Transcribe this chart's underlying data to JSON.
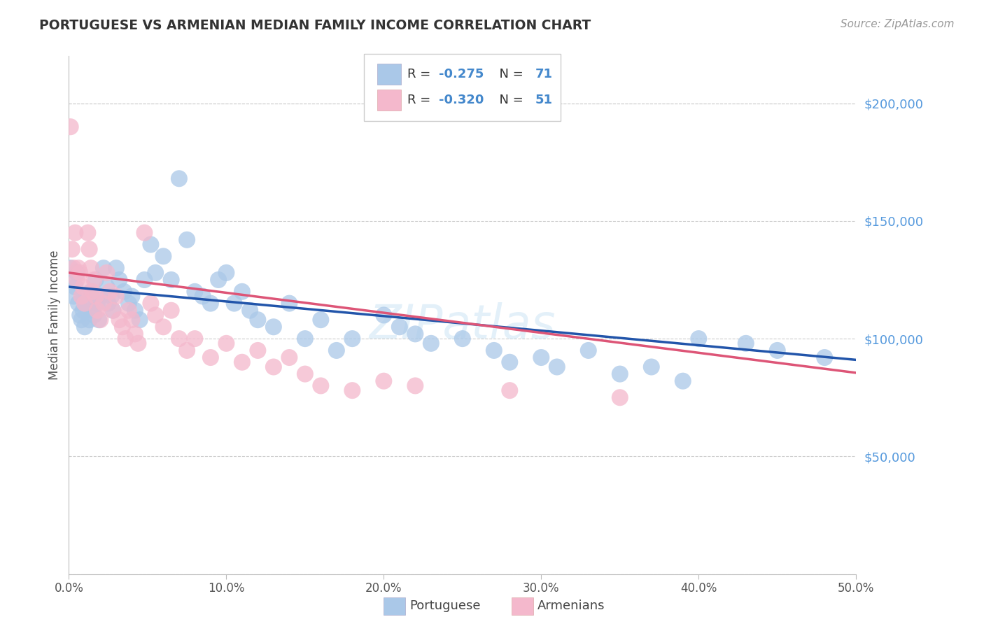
{
  "title": "PORTUGUESE VS ARMENIAN MEDIAN FAMILY INCOME CORRELATION CHART",
  "source": "Source: ZipAtlas.com",
  "ylabel": "Median Family Income",
  "y_tick_labels": [
    "$50,000",
    "$100,000",
    "$150,000",
    "$200,000"
  ],
  "y_tick_values": [
    50000,
    100000,
    150000,
    200000
  ],
  "blue_color": "#aac8e8",
  "pink_color": "#f4b8cc",
  "blue_line_color": "#2255aa",
  "pink_line_color": "#dd5577",
  "x_min": 0.0,
  "x_max": 0.5,
  "y_min": 0,
  "y_max": 220000,
  "blue_intercept": 122000,
  "blue_slope": -62000,
  "pink_intercept": 128000,
  "pink_slope": -85000,
  "blue_points": [
    [
      0.001,
      130000
    ],
    [
      0.002,
      125000
    ],
    [
      0.003,
      118000
    ],
    [
      0.004,
      122000
    ],
    [
      0.005,
      128000
    ],
    [
      0.006,
      115000
    ],
    [
      0.007,
      110000
    ],
    [
      0.008,
      108000
    ],
    [
      0.009,
      112000
    ],
    [
      0.01,
      105000
    ],
    [
      0.011,
      118000
    ],
    [
      0.012,
      115000
    ],
    [
      0.013,
      108000
    ],
    [
      0.014,
      120000
    ],
    [
      0.015,
      112000
    ],
    [
      0.016,
      110000
    ],
    [
      0.017,
      125000
    ],
    [
      0.018,
      115000
    ],
    [
      0.019,
      108000
    ],
    [
      0.02,
      118000
    ],
    [
      0.022,
      130000
    ],
    [
      0.024,
      122000
    ],
    [
      0.025,
      115000
    ],
    [
      0.027,
      118000
    ],
    [
      0.028,
      112000
    ],
    [
      0.03,
      130000
    ],
    [
      0.032,
      125000
    ],
    [
      0.035,
      120000
    ],
    [
      0.038,
      115000
    ],
    [
      0.04,
      118000
    ],
    [
      0.042,
      112000
    ],
    [
      0.045,
      108000
    ],
    [
      0.048,
      125000
    ],
    [
      0.052,
      140000
    ],
    [
      0.055,
      128000
    ],
    [
      0.06,
      135000
    ],
    [
      0.065,
      125000
    ],
    [
      0.07,
      168000
    ],
    [
      0.075,
      142000
    ],
    [
      0.08,
      120000
    ],
    [
      0.085,
      118000
    ],
    [
      0.09,
      115000
    ],
    [
      0.095,
      125000
    ],
    [
      0.1,
      128000
    ],
    [
      0.105,
      115000
    ],
    [
      0.11,
      120000
    ],
    [
      0.115,
      112000
    ],
    [
      0.12,
      108000
    ],
    [
      0.13,
      105000
    ],
    [
      0.14,
      115000
    ],
    [
      0.15,
      100000
    ],
    [
      0.16,
      108000
    ],
    [
      0.17,
      95000
    ],
    [
      0.18,
      100000
    ],
    [
      0.2,
      110000
    ],
    [
      0.21,
      105000
    ],
    [
      0.22,
      102000
    ],
    [
      0.23,
      98000
    ],
    [
      0.25,
      100000
    ],
    [
      0.27,
      95000
    ],
    [
      0.28,
      90000
    ],
    [
      0.3,
      92000
    ],
    [
      0.31,
      88000
    ],
    [
      0.33,
      95000
    ],
    [
      0.35,
      85000
    ],
    [
      0.37,
      88000
    ],
    [
      0.39,
      82000
    ],
    [
      0.4,
      100000
    ],
    [
      0.43,
      98000
    ],
    [
      0.45,
      95000
    ],
    [
      0.48,
      92000
    ]
  ],
  "pink_points": [
    [
      0.001,
      190000
    ],
    [
      0.002,
      138000
    ],
    [
      0.003,
      130000
    ],
    [
      0.004,
      145000
    ],
    [
      0.005,
      125000
    ],
    [
      0.006,
      130000
    ],
    [
      0.007,
      128000
    ],
    [
      0.008,
      118000
    ],
    [
      0.009,
      122000
    ],
    [
      0.01,
      115000
    ],
    [
      0.012,
      145000
    ],
    [
      0.013,
      138000
    ],
    [
      0.014,
      130000
    ],
    [
      0.015,
      120000
    ],
    [
      0.016,
      125000
    ],
    [
      0.017,
      118000
    ],
    [
      0.018,
      112000
    ],
    [
      0.02,
      108000
    ],
    [
      0.022,
      115000
    ],
    [
      0.024,
      128000
    ],
    [
      0.026,
      120000
    ],
    [
      0.028,
      112000
    ],
    [
      0.03,
      118000
    ],
    [
      0.032,
      108000
    ],
    [
      0.034,
      105000
    ],
    [
      0.036,
      100000
    ],
    [
      0.038,
      112000
    ],
    [
      0.04,
      108000
    ],
    [
      0.042,
      102000
    ],
    [
      0.044,
      98000
    ],
    [
      0.048,
      145000
    ],
    [
      0.052,
      115000
    ],
    [
      0.055,
      110000
    ],
    [
      0.06,
      105000
    ],
    [
      0.065,
      112000
    ],
    [
      0.07,
      100000
    ],
    [
      0.075,
      95000
    ],
    [
      0.08,
      100000
    ],
    [
      0.09,
      92000
    ],
    [
      0.1,
      98000
    ],
    [
      0.11,
      90000
    ],
    [
      0.12,
      95000
    ],
    [
      0.13,
      88000
    ],
    [
      0.14,
      92000
    ],
    [
      0.15,
      85000
    ],
    [
      0.16,
      80000
    ],
    [
      0.18,
      78000
    ],
    [
      0.2,
      82000
    ],
    [
      0.22,
      80000
    ],
    [
      0.28,
      78000
    ],
    [
      0.35,
      75000
    ]
  ]
}
